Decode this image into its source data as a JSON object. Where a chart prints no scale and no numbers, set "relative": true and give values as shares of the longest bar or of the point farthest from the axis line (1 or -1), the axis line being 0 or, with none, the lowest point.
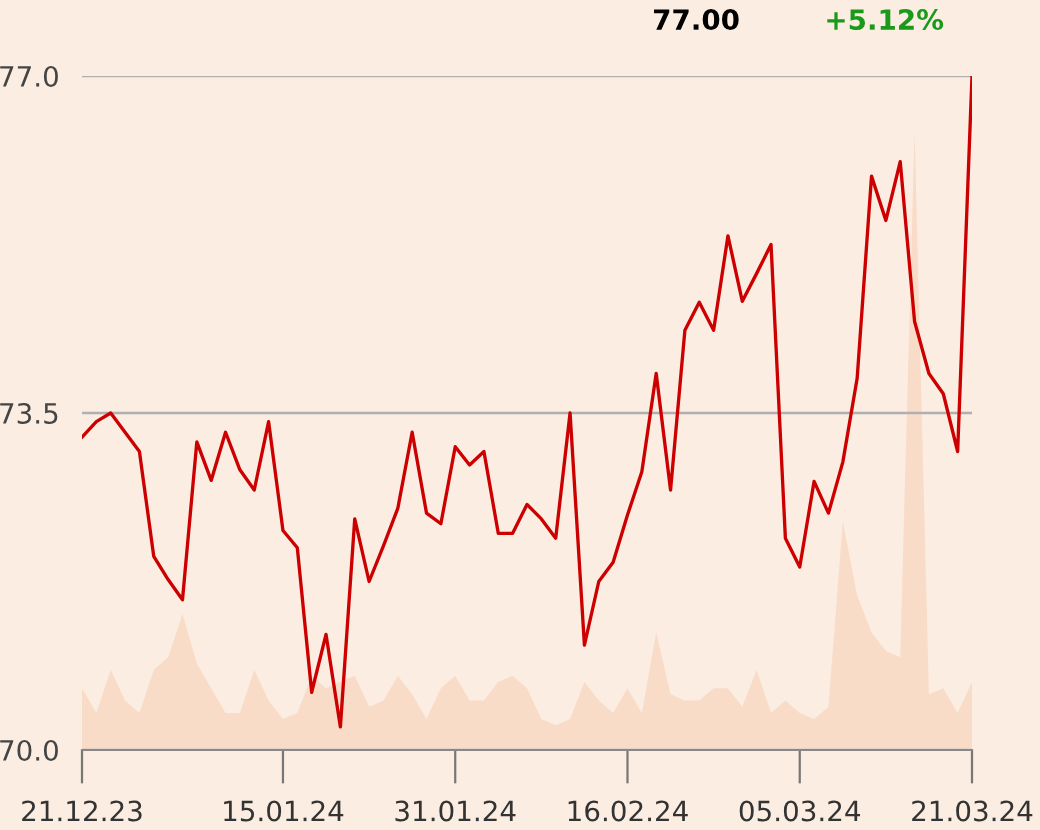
{
  "chart_data": [
    {
      "type": "line",
      "annotations": [
        "77.00",
        "+5.12%"
      ],
      "categories": [
        "21.12.23",
        null,
        null,
        null,
        null,
        null,
        null,
        null,
        null,
        null,
        null,
        null,
        null,
        null,
        "15.01.24",
        null,
        null,
        null,
        null,
        null,
        null,
        null,
        null,
        null,
        null,
        null,
        "31.01.24",
        null,
        null,
        null,
        null,
        null,
        null,
        null,
        null,
        null,
        null,
        null,
        "16.02.24",
        null,
        null,
        null,
        null,
        null,
        null,
        null,
        null,
        null,
        null,
        null,
        "05.03.24",
        null,
        null,
        null,
        null,
        null,
        null,
        null,
        null,
        null,
        null,
        null,
        "21.03.24"
      ],
      "series": [
        {
          "color": "#cc0000",
          "values": [
            73.25,
            73.41,
            73.5,
            73.3,
            73.1,
            72.01,
            71.77,
            71.56,
            73.2,
            72.8,
            73.3,
            72.91,
            72.7,
            73.41,
            72.28,
            72.1,
            70.6,
            71.2,
            70.24,
            72.4,
            71.75,
            72.12,
            72.51,
            73.3,
            72.46,
            72.35,
            73.15,
            72.96,
            73.1,
            72.25,
            72.25,
            72.55,
            72.4,
            72.2,
            73.5,
            71.09,
            71.75,
            71.95,
            72.44,
            72.89,
            73.91,
            72.7,
            74.36,
            74.65,
            74.36,
            75.34,
            74.66,
            74.95,
            75.25,
            72.2,
            71.9,
            72.79,
            72.46,
            72.99,
            73.86,
            75.96,
            75.5,
            76.11,
            74.45,
            73.91,
            73.7,
            73.1,
            77.0
          ]
        }
      ],
      "ylim": [
        70,
        77
      ],
      "yticks": [
        {
          "value": 70,
          "label": "70.0"
        },
        {
          "value": 73.5,
          "label": "73.5"
        },
        {
          "value": 77,
          "label": "77.0"
        }
      ],
      "grid": "y",
      "line_style": "solid",
      "marker": "none"
    },
    {
      "type": "area",
      "relative": true,
      "tick_labels": false,
      "categories": [
        "21.12.23",
        null,
        null,
        null,
        null,
        null,
        null,
        null,
        null,
        null,
        null,
        null,
        null,
        null,
        "15.01.24",
        null,
        null,
        null,
        null,
        null,
        null,
        null,
        null,
        null,
        null,
        null,
        "31.01.24",
        null,
        null,
        null,
        null,
        null,
        null,
        null,
        null,
        null,
        null,
        null,
        "16.02.24",
        null,
        null,
        null,
        null,
        null,
        null,
        null,
        null,
        null,
        null,
        null,
        "05.03.24",
        null,
        null,
        null,
        null,
        null,
        null,
        null,
        null,
        null,
        null,
        null,
        "21.03.24"
      ],
      "series": [
        {
          "color": "#f8dcc8",
          "values": [
            0.1,
            0.06,
            0.13,
            0.08,
            0.06,
            0.13,
            0.15,
            0.22,
            0.14,
            0.1,
            0.06,
            0.06,
            0.13,
            0.08,
            0.05,
            0.06,
            0.12,
            0.1,
            0.11,
            0.12,
            0.07,
            0.08,
            0.12,
            0.09,
            0.05,
            0.1,
            0.12,
            0.08,
            0.08,
            0.11,
            0.12,
            0.1,
            0.05,
            0.04,
            0.05,
            0.11,
            0.08,
            0.06,
            0.1,
            0.06,
            0.19,
            0.09,
            0.08,
            0.08,
            0.1,
            0.1,
            0.07,
            0.13,
            0.06,
            0.08,
            0.06,
            0.05,
            0.07,
            0.37,
            0.25,
            0.19,
            0.16,
            0.15,
            1,
            0.09,
            0.1,
            0.06,
            0.11
          ]
        }
      ]
    }
  ]
}
